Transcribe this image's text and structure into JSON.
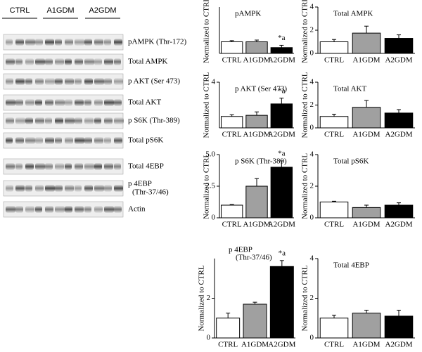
{
  "blot": {
    "groups": [
      "CTRL",
      "A1GDM",
      "A2GDM"
    ],
    "rows": [
      "pAMPK (Thr-172)",
      "Total AMPK",
      "p AKT (Ser 473)",
      "Total AKT",
      "p S6K (Thr-389)",
      "Total pS6K",
      "Total 4EBP",
      [
        "p 4EBP",
        "(Thr-37/46)"
      ],
      "Actin"
    ]
  },
  "chart_data": [
    {
      "type": "bar",
      "title": "pAMPK",
      "ylabel": "Normalized to CTRL",
      "categories": [
        "CTRL",
        "A1GDM",
        "A2GDM"
      ],
      "values": [
        1.0,
        1.0,
        0.5
      ],
      "errors": [
        0.1,
        0.15,
        0.2
      ],
      "colors": [
        "#ffffff",
        "#a0a0a0",
        "#000000"
      ],
      "annotations": [
        null,
        null,
        "*a"
      ],
      "ylim": [
        0,
        4
      ]
    },
    {
      "type": "bar",
      "title": "Total AMPK",
      "ylabel": "Normalized to CTRL",
      "categories": [
        "CTRL",
        "A1GDM",
        "A2GDM"
      ],
      "values": [
        1.0,
        1.75,
        1.3
      ],
      "errors": [
        0.2,
        0.6,
        0.3
      ],
      "colors": [
        "#ffffff",
        "#a0a0a0",
        "#000000"
      ],
      "ylim": [
        0,
        4
      ],
      "yticks": [
        0,
        2,
        4
      ]
    },
    {
      "type": "bar",
      "title": "p AKT (Ser 473)",
      "ylabel": "Normalized to CTRL",
      "categories": [
        "CTRL",
        "A1GDM",
        "A2GDM"
      ],
      "values": [
        1.0,
        1.1,
        2.1
      ],
      "errors": [
        0.15,
        0.3,
        0.5
      ],
      "colors": [
        "#ffffff",
        "#a0a0a0",
        "#000000"
      ],
      "annotations": [
        null,
        null,
        "*a"
      ],
      "ylim": [
        0,
        4
      ],
      "yticks": [
        4
      ]
    },
    {
      "type": "bar",
      "title": "Total AKT",
      "ylabel": "Normalized to CTRL",
      "categories": [
        "CTRL",
        "A1GDM",
        "A2GDM"
      ],
      "values": [
        1.0,
        1.8,
        1.3
      ],
      "errors": [
        0.2,
        0.6,
        0.3
      ],
      "colors": [
        "#ffffff",
        "#a0a0a0",
        "#000000"
      ],
      "ylim": [
        0,
        4
      ],
      "yticks": [
        0,
        2,
        4
      ]
    },
    {
      "type": "bar",
      "title": "p S6K (Thr-389)",
      "ylabel": "Normalized to CTRL",
      "categories": [
        "CTRL",
        "A1GDM",
        "A2GDM"
      ],
      "values": [
        1.0,
        2.5,
        4.0
      ],
      "errors": [
        0.05,
        0.6,
        0.5
      ],
      "colors": [
        "#ffffff",
        "#a0a0a0",
        "#000000"
      ],
      "annotations": [
        null,
        null,
        "*a"
      ],
      "ylim": [
        0,
        5
      ],
      "yticks": [
        0,
        2.5,
        {
          "value": 5,
          "label": "5.0"
        }
      ]
    },
    {
      "type": "bar",
      "title": "Total pS6K",
      "ylabel": "Normalized to CTRL",
      "categories": [
        "CTRL",
        "A1GDM",
        "A2GDM"
      ],
      "values": [
        1.0,
        0.65,
        0.8
      ],
      "errors": [
        0.05,
        0.15,
        0.15
      ],
      "colors": [
        "#ffffff",
        "#a0a0a0",
        "#000000"
      ],
      "ylim": [
        0,
        4
      ],
      "yticks": [
        0,
        2,
        4
      ]
    },
    {
      "type": "bar",
      "title": [
        "p 4EBP",
        "(Thr-37/46)"
      ],
      "ylabel": "Normalized to CTRL",
      "categories": [
        "CTRL",
        "A1GDM",
        "A2GDM"
      ],
      "values": [
        1.0,
        1.7,
        3.6
      ],
      "errors": [
        0.25,
        0.1,
        0.3
      ],
      "colors": [
        "#ffffff",
        "#a0a0a0",
        "#000000"
      ],
      "annotations": [
        null,
        null,
        "*a"
      ],
      "ylim": [
        0,
        4
      ],
      "yticks": [
        0,
        2
      ]
    },
    {
      "type": "bar",
      "title": "Total 4EBP",
      "ylabel": "Normalized to CTRL",
      "categories": [
        "CTRL",
        "A1GDM",
        "A2GDM"
      ],
      "values": [
        1.0,
        1.25,
        1.1
      ],
      "errors": [
        0.15,
        0.15,
        0.3
      ],
      "colors": [
        "#ffffff",
        "#a0a0a0",
        "#000000"
      ],
      "ylim": [
        0,
        4
      ],
      "yticks": [
        0,
        2,
        4
      ]
    }
  ]
}
